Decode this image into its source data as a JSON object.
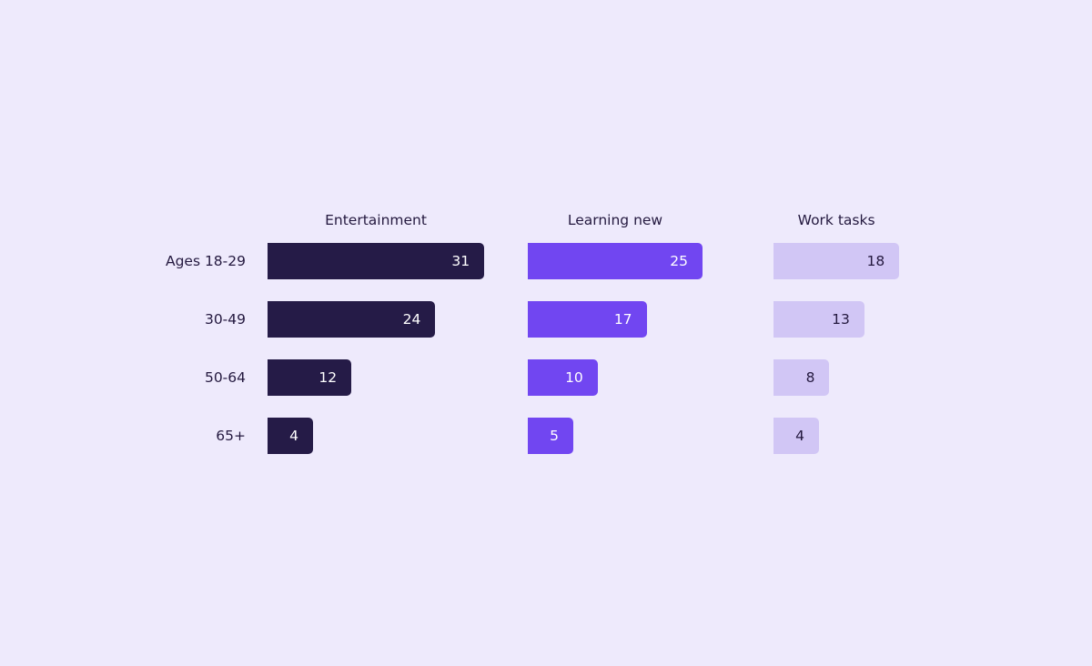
{
  "chart_data": {
    "type": "bar",
    "orientation": "horizontal",
    "layout": "small-multiples",
    "categories": [
      "Ages 18-29",
      "30-49",
      "50-64",
      "65+"
    ],
    "series": [
      {
        "name": "Entertainment",
        "values": [
          31,
          24,
          12,
          4
        ],
        "color": "#251B47",
        "label_color": "#FFFFFF"
      },
      {
        "name": "Learning new",
        "values": [
          25,
          17,
          10,
          5
        ],
        "color": "#7146F1",
        "label_color": "#FFFFFF"
      },
      {
        "name": "Work tasks",
        "values": [
          18,
          13,
          8,
          4
        ],
        "color": "#D1C6F5",
        "label_color": "#24193F"
      }
    ],
    "background": "#EEEAFC",
    "grid": false,
    "data_labels": true
  }
}
